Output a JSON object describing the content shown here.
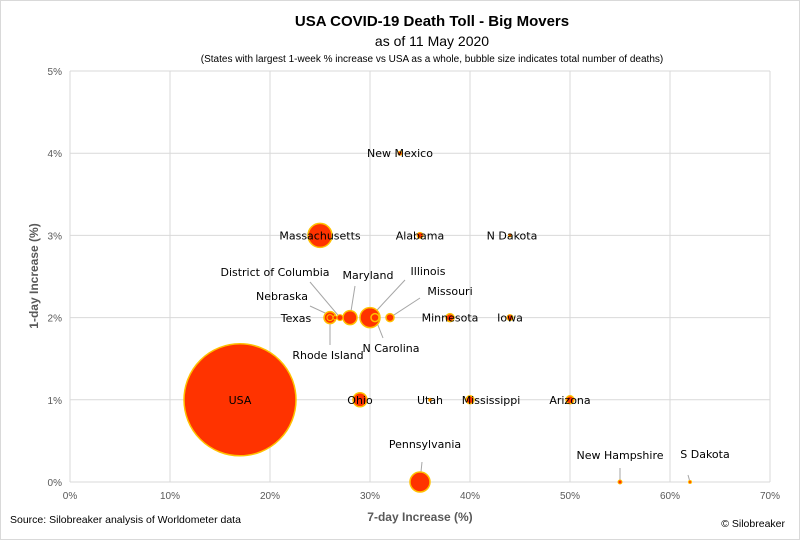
{
  "chart_data": {
    "type": "scatter",
    "title": "USA COVID-19 Death Toll - Big Movers",
    "subtitle": "as of 11 May 2020",
    "note": "(States with largest 1-week % increase vs USA as a whole, bubble size indicates total number of deaths)",
    "xlabel": "7-day Increase (%)",
    "ylabel": "1-day Increase (%)",
    "xlim": [
      0,
      70
    ],
    "ylim": [
      0,
      5
    ],
    "x_ticks": [
      "0%",
      "10%",
      "20%",
      "30%",
      "40%",
      "50%",
      "60%",
      "70%"
    ],
    "y_ticks": [
      "0%",
      "1%",
      "2%",
      "3%",
      "4%",
      "5%"
    ],
    "grid": true,
    "bubble_color": "#FF3300",
    "bubble_border": "#FFC000",
    "points": [
      {
        "label": "USA",
        "x": 17,
        "y": 1,
        "r": 56
      },
      {
        "label": "New Mexico",
        "x": 33,
        "y": 4,
        "r": 2
      },
      {
        "label": "Massachusetts",
        "x": 25,
        "y": 3,
        "r": 12
      },
      {
        "label": "Alabama",
        "x": 35,
        "y": 3,
        "r": 3
      },
      {
        "label": "N Dakota",
        "x": 44,
        "y": 3,
        "r": 1.5
      },
      {
        "label": "District of Columbia",
        "x": 27,
        "y": 2,
        "r": 3
      },
      {
        "label": "Maryland",
        "x": 28,
        "y": 2,
        "r": 7
      },
      {
        "label": "Illinois",
        "x": 30,
        "y": 2,
        "r": 10
      },
      {
        "label": "Missouri",
        "x": 32,
        "y": 2,
        "r": 4
      },
      {
        "label": "Nebraska",
        "x": 26.5,
        "y": 2,
        "r": 2
      },
      {
        "label": "Texas",
        "x": 26,
        "y": 2,
        "r": 6
      },
      {
        "label": "Minnesota",
        "x": 38,
        "y": 2,
        "r": 4
      },
      {
        "label": "Iowa",
        "x": 44,
        "y": 2,
        "r": 3
      },
      {
        "label": "Rhode Island",
        "x": 26,
        "y": 2,
        "r": 3
      },
      {
        "label": "N Carolina",
        "x": 30.5,
        "y": 2,
        "r": 4
      },
      {
        "label": "Ohio",
        "x": 29,
        "y": 1,
        "r": 7
      },
      {
        "label": "Utah",
        "x": 36,
        "y": 1,
        "r": 1.5
      },
      {
        "label": "Mississippi",
        "x": 40,
        "y": 1,
        "r": 4
      },
      {
        "label": "Arizona",
        "x": 50,
        "y": 1,
        "r": 4
      },
      {
        "label": "Pennsylvania",
        "x": 35,
        "y": 0,
        "r": 10
      },
      {
        "label": "New Hampshire",
        "x": 55,
        "y": 0,
        "r": 2
      },
      {
        "label": "S Dakota",
        "x": 62,
        "y": 0,
        "r": 1.5
      }
    ]
  },
  "footer": {
    "source": "Source: Silobreaker analysis of Worldometer data",
    "credit": "© Silobreaker"
  }
}
